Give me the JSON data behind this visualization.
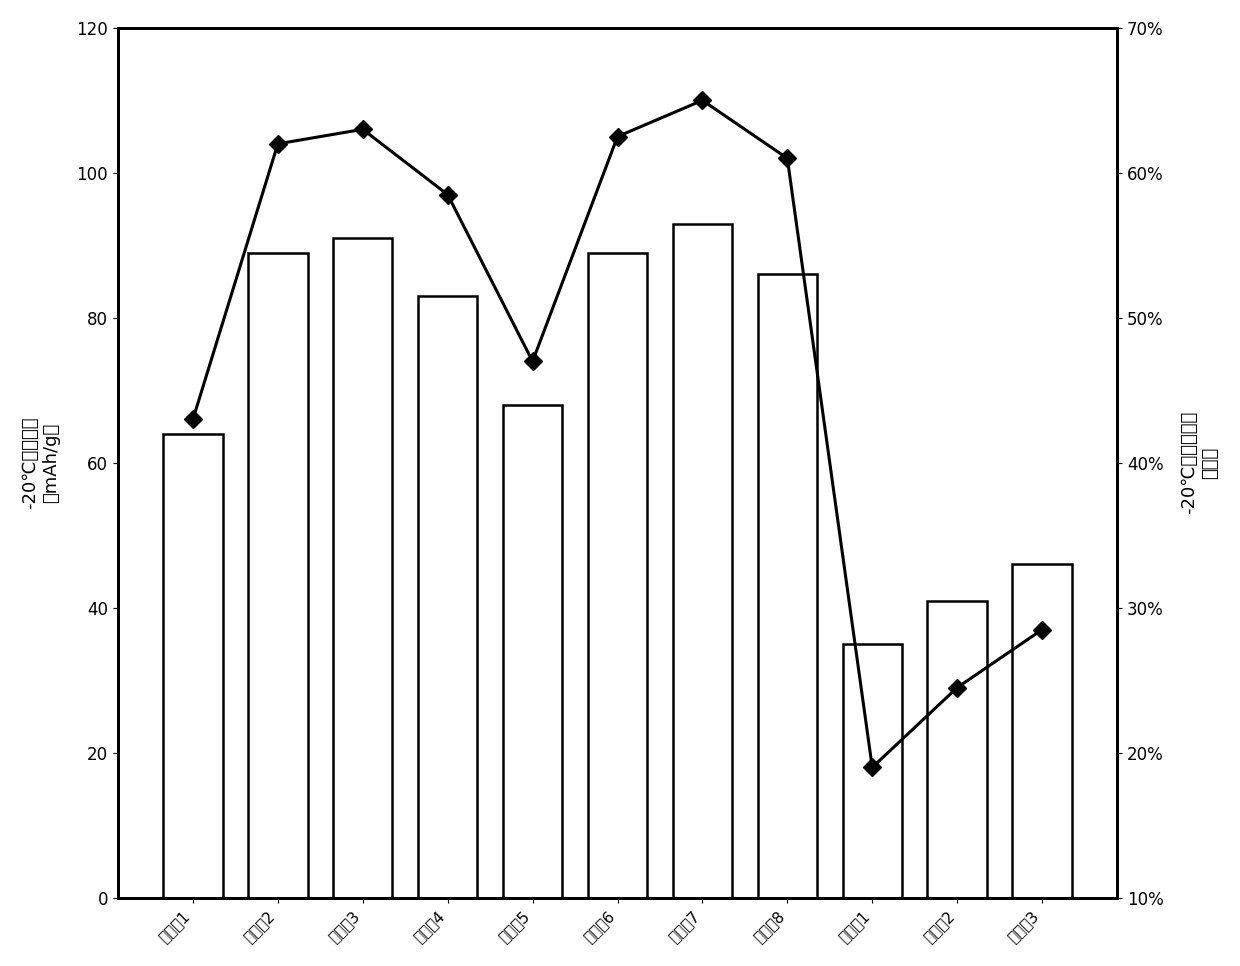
{
  "categories": [
    "实验例1",
    "实验例2",
    "实验例3",
    "实验例4",
    "实验例5",
    "实验例6",
    "实验例7",
    "实验例8",
    "对比例1",
    "对比例2",
    "对比例3"
  ],
  "bar_values": [
    64,
    89,
    91,
    83,
    68,
    89,
    93,
    86,
    35,
    41,
    46
  ],
  "line_values_pct": [
    0.43,
    0.62,
    0.63,
    0.585,
    0.47,
    0.625,
    0.65,
    0.61,
    0.19,
    0.245,
    0.285
  ],
  "bar_color": "#ffffff",
  "bar_edgecolor": "#000000",
  "line_color": "#000000",
  "marker": "D",
  "marker_size": 9,
  "left_ylim": [
    0,
    120
  ],
  "left_yticks": [
    0,
    20,
    40,
    60,
    80,
    100,
    120
  ],
  "right_ylim": [
    0.1,
    0.7
  ],
  "right_yticks": [
    0.1,
    0.2,
    0.3,
    0.4,
    0.5,
    0.6,
    0.7
  ],
  "left_ylabel_line1": "-20℃放电容量",
  "left_ylabel_line2": "（mAh/g）",
  "right_ylabel_line1": "-20℃放电百分比",
  "right_ylabel_line2": "（％）",
  "xlabel": "",
  "background_color": "#ffffff",
  "tick_label_rotation": 45,
  "bar_linewidth": 1.8,
  "line_linewidth": 2.2,
  "spine_linewidth": 2.0
}
